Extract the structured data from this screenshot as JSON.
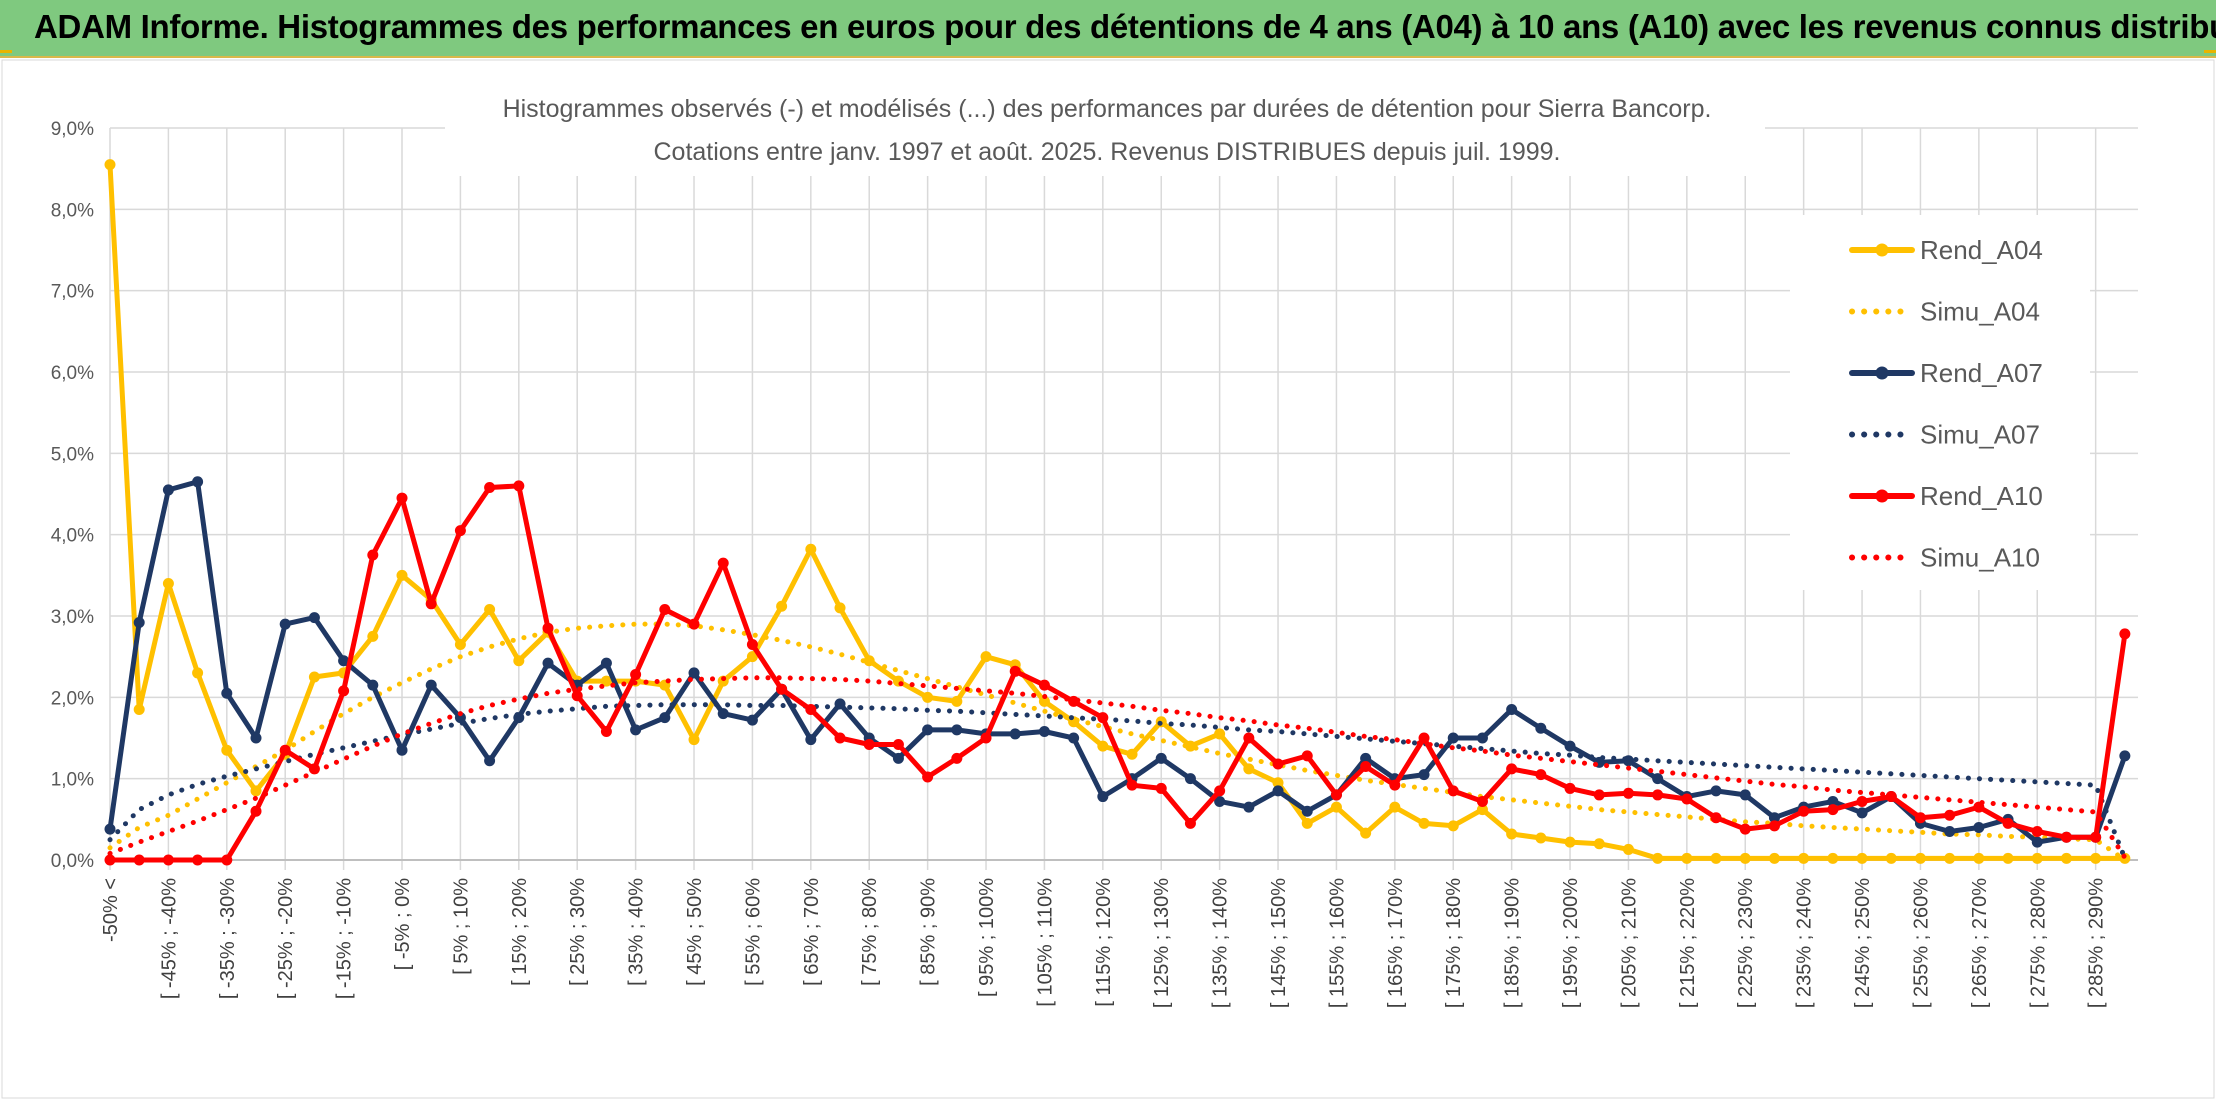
{
  "banner": {
    "title": "ADAM Informe. Histogrammes des performances en euros pour des détentions de 4 ans (A04) à 10 ans (A10) avec les revenus connus distribués"
  },
  "chart_data": {
    "type": "line",
    "title": "Histogrammes observés (-) et modélisés (...) des performances par durées de détention pour Sierra Bancorp.",
    "subtitle": "Cotations entre janv. 1997 et août. 2025. Revenus DISTRIBUES depuis juil. 1999.",
    "xlabel": "",
    "ylabel": "",
    "ylim": [
      0,
      9
    ],
    "yticks": [
      "0,0%",
      "1,0%",
      "2,0%",
      "3,0%",
      "4,0%",
      "5,0%",
      "6,0%",
      "7,0%",
      "8,0%",
      "9,0%"
    ],
    "grid": true,
    "legend_position": "right",
    "x_tick_labels": [
      "-50% <",
      "[ -45% ; -40%",
      "[ -35% ; -30%",
      "[ -25% ; -20%",
      "[ -15% ; -10%",
      "[ -5% ; 0%",
      "[ 5% ; 10%",
      "[ 15% ; 20%",
      "[ 25% ; 30%",
      "[ 35% ; 40%",
      "[ 45% ; 50%",
      "[ 55% ; 60%",
      "[ 65% ; 70%",
      "[ 75% ; 80%",
      "[ 85% ; 90%",
      "[ 95% ; 100%",
      "[ 105% ; 110%",
      "[ 115% ; 120%",
      "[ 125% ; 130%",
      "[ 135% ; 140%",
      "[ 145% ; 150%",
      "[ 155% ; 160%",
      "[ 165% ; 170%",
      "[ 175% ; 180%",
      "[ 185% ; 190%",
      "[ 195% ; 200%",
      "[ 205% ; 210%",
      "[ 215% ; 220%",
      "[ 225% ; 230%",
      "[ 235% ; 240%",
      "[ 245% ; 250%",
      "[ 255% ; 260%",
      "[ 265% ; 270%",
      "[ 275% ; 280%",
      "[ 285% ; 290%"
    ],
    "series": [
      {
        "name": "Rend_A04",
        "color": "#ffc000",
        "style": "solid",
        "markers": true,
        "values": [
          8.55,
          1.85,
          3.4,
          2.3,
          1.35,
          0.85,
          1.3,
          2.25,
          2.3,
          2.75,
          3.5,
          3.2,
          2.65,
          3.08,
          2.45,
          2.8,
          2.2,
          2.2,
          2.2,
          2.15,
          1.48,
          2.2,
          2.5,
          3.12,
          3.82,
          3.1,
          2.45,
          2.2,
          2.0,
          1.95,
          2.5,
          2.4,
          1.95,
          1.7,
          1.4,
          1.3,
          1.7,
          1.4,
          1.55,
          1.12,
          0.95,
          0.45,
          0.65,
          0.33,
          0.65,
          0.45,
          0.42,
          0.62,
          0.32,
          0.27,
          0.22,
          0.2,
          0.13,
          0.02,
          0.02,
          0.02,
          0.02,
          0.02,
          0.02,
          0.02,
          0.02,
          0.02,
          0.02,
          0.02,
          0.02,
          0.02,
          0.02,
          0.02,
          0.02,
          0.02
        ]
      },
      {
        "name": "Simu_A04",
        "color": "#ffc000",
        "style": "dotted",
        "markers": false,
        "values": [
          0.15,
          0.4,
          0.55,
          0.75,
          0.95,
          1.15,
          1.35,
          1.58,
          1.8,
          2.0,
          2.18,
          2.35,
          2.5,
          2.62,
          2.72,
          2.8,
          2.85,
          2.88,
          2.9,
          2.9,
          2.88,
          2.83,
          2.77,
          2.7,
          2.62,
          2.53,
          2.43,
          2.33,
          2.23,
          2.13,
          2.03,
          1.93,
          1.83,
          1.73,
          1.64,
          1.55,
          1.47,
          1.39,
          1.31,
          1.24,
          1.17,
          1.1,
          1.04,
          0.98,
          0.93,
          0.88,
          0.83,
          0.78,
          0.74,
          0.7,
          0.66,
          0.62,
          0.59,
          0.56,
          0.53,
          0.5,
          0.47,
          0.45,
          0.42,
          0.4,
          0.38,
          0.36,
          0.34,
          0.32,
          0.31,
          0.29,
          0.28,
          0.26,
          0.25,
          0.0
        ]
      },
      {
        "name": "Rend_A07",
        "color": "#1f3864",
        "style": "solid",
        "markers": true,
        "values": [
          0.38,
          2.92,
          4.55,
          4.65,
          2.05,
          1.5,
          2.9,
          2.98,
          2.45,
          2.15,
          1.35,
          2.15,
          1.75,
          1.22,
          1.75,
          2.42,
          2.15,
          2.42,
          1.6,
          1.75,
          2.3,
          1.8,
          1.72,
          2.1,
          1.48,
          1.92,
          1.5,
          1.25,
          1.6,
          1.6,
          1.55,
          1.55,
          1.58,
          1.5,
          0.78,
          1.0,
          1.25,
          1.0,
          0.72,
          0.65,
          0.85,
          0.6,
          0.8,
          1.25,
          1.0,
          1.05,
          1.5,
          1.5,
          1.85,
          1.62,
          1.4,
          1.2,
          1.22,
          1.0,
          0.78,
          0.85,
          0.8,
          0.52,
          0.65,
          0.72,
          0.58,
          0.78,
          0.45,
          0.35,
          0.4,
          0.5,
          0.22,
          0.28,
          0.28,
          1.28
        ]
      },
      {
        "name": "Simu_A07",
        "color": "#1f3864",
        "style": "dotted",
        "markers": false,
        "values": [
          0.25,
          0.62,
          0.8,
          0.93,
          1.03,
          1.12,
          1.21,
          1.3,
          1.38,
          1.46,
          1.54,
          1.61,
          1.68,
          1.74,
          1.79,
          1.83,
          1.86,
          1.89,
          1.9,
          1.91,
          1.91,
          1.91,
          1.9,
          1.9,
          1.89,
          1.88,
          1.87,
          1.86,
          1.84,
          1.83,
          1.81,
          1.79,
          1.77,
          1.75,
          1.73,
          1.71,
          1.68,
          1.66,
          1.63,
          1.6,
          1.58,
          1.55,
          1.52,
          1.49,
          1.46,
          1.43,
          1.4,
          1.37,
          1.34,
          1.31,
          1.29,
          1.26,
          1.24,
          1.22,
          1.2,
          1.18,
          1.16,
          1.14,
          1.12,
          1.1,
          1.08,
          1.06,
          1.04,
          1.02,
          1.0,
          0.98,
          0.96,
          0.94,
          0.92,
          0.02
        ]
      },
      {
        "name": "Rend_A10",
        "color": "#ff0000",
        "style": "solid",
        "markers": true,
        "values": [
          0.0,
          0.0,
          0.0,
          0.0,
          0.0,
          0.6,
          1.35,
          1.12,
          2.08,
          3.75,
          4.45,
          3.15,
          4.05,
          4.58,
          4.6,
          2.85,
          2.02,
          1.58,
          2.28,
          3.08,
          2.9,
          3.65,
          2.65,
          2.1,
          1.85,
          1.5,
          1.42,
          1.42,
          1.02,
          1.25,
          1.5,
          2.32,
          2.15,
          1.95,
          1.75,
          0.92,
          0.88,
          0.45,
          0.85,
          1.5,
          1.18,
          1.28,
          0.8,
          1.15,
          0.92,
          1.5,
          0.85,
          0.72,
          1.12,
          1.05,
          0.88,
          0.8,
          0.82,
          0.8,
          0.75,
          0.52,
          0.38,
          0.42,
          0.6,
          0.62,
          0.72,
          0.78,
          0.52,
          0.55,
          0.65,
          0.45,
          0.35,
          0.28,
          0.28,
          2.78
        ]
      },
      {
        "name": "Simu_A10",
        "color": "#ff0000",
        "style": "dotted",
        "markers": false,
        "values": [
          0.08,
          0.22,
          0.35,
          0.48,
          0.62,
          0.76,
          0.92,
          1.08,
          1.24,
          1.4,
          1.55,
          1.68,
          1.8,
          1.9,
          1.98,
          2.05,
          2.1,
          2.14,
          2.18,
          2.2,
          2.22,
          2.23,
          2.24,
          2.24,
          2.23,
          2.22,
          2.2,
          2.17,
          2.14,
          2.11,
          2.08,
          2.05,
          2.01,
          1.97,
          1.93,
          1.89,
          1.84,
          1.8,
          1.75,
          1.71,
          1.66,
          1.62,
          1.57,
          1.52,
          1.48,
          1.43,
          1.38,
          1.34,
          1.29,
          1.25,
          1.21,
          1.17,
          1.13,
          1.09,
          1.05,
          1.01,
          0.97,
          0.93,
          0.9,
          0.86,
          0.83,
          0.8,
          0.77,
          0.74,
          0.71,
          0.68,
          0.65,
          0.62,
          0.59,
          0.03
        ]
      }
    ]
  }
}
